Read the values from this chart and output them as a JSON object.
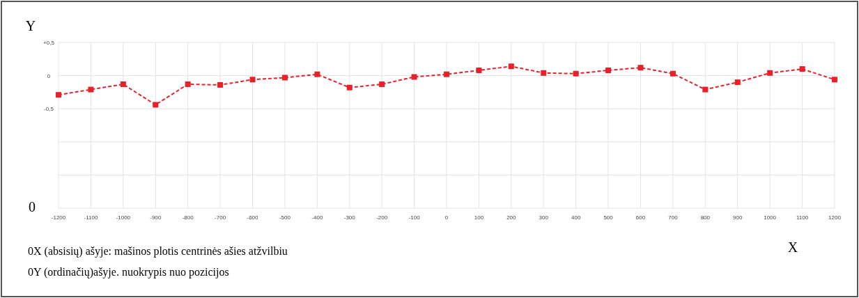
{
  "chart_data": {
    "type": "line",
    "xlabel": "X",
    "ylabel": "Y",
    "x": [
      -1200,
      -1100,
      -1000,
      -900,
      -800,
      -700,
      -600,
      -500,
      -400,
      -300,
      -200,
      -100,
      0,
      100,
      200,
      300,
      400,
      500,
      600,
      700,
      800,
      900,
      1000,
      1100,
      1200
    ],
    "series": [
      {
        "color": "#e8202a",
        "values": [
          -0.29,
          -0.21,
          -0.13,
          -0.44,
          -0.13,
          -0.14,
          -0.06,
          -0.03,
          0.02,
          -0.18,
          -0.13,
          -0.02,
          0.02,
          0.08,
          0.14,
          0.04,
          0.03,
          0.08,
          0.12,
          0.03,
          -0.21,
          -0.1,
          0.04,
          0.1,
          -0.06
        ]
      }
    ],
    "xlim": [
      -1200,
      1200
    ],
    "xticks": [
      -1200,
      -1100,
      -1000,
      -900,
      -800,
      -700,
      -600,
      -500,
      -400,
      -300,
      -200,
      -100,
      0,
      100,
      200,
      300,
      400,
      500,
      600,
      700,
      800,
      900,
      1000,
      1100,
      1200
    ],
    "ylim": [
      -2,
      0.5
    ],
    "yticks": [
      {
        "value": 0.5,
        "label": "+0,5"
      },
      0,
      {
        "value": -0.5,
        "label": "-0,5"
      },
      {
        "value": -1,
        "label": null
      },
      {
        "value": -1.5,
        "label": null
      },
      {
        "value": -2,
        "label": null
      }
    ],
    "grid": true,
    "marker": "square",
    "line_style": "dashed",
    "annotations": [
      "0",
      "0X (absisių) ašyje: mašinos plotis centrinės ašies atžvilbiu",
      "0Y (ordinačių)ašyje. nuokrypis nuo pozicijos"
    ]
  }
}
